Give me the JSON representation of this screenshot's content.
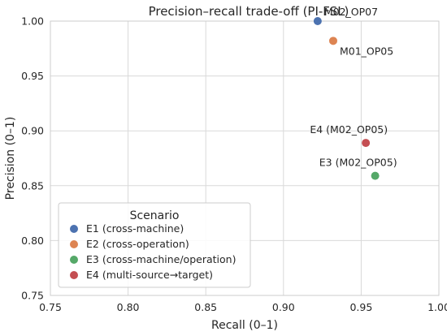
{
  "chart_data": {
    "type": "scatter",
    "title": "Precision–recall trade-off (PI-FSL)",
    "xlabel": "Recall (0–1)",
    "ylabel": "Precision (0–1)",
    "xlim": [
      0.75,
      1.0
    ],
    "ylim": [
      0.75,
      1.0
    ],
    "xticks": [
      "0.75",
      "0.80",
      "0.85",
      "0.90",
      "0.95",
      "1.00"
    ],
    "yticks": [
      "0.75",
      "0.80",
      "0.85",
      "0.90",
      "0.95",
      "1.00"
    ],
    "grid": true,
    "legend": {
      "title": "Scenario",
      "placement": "lower-left"
    },
    "series": [
      {
        "name": "E1 (cross-machine)",
        "color": "#4c72b0",
        "points": [
          {
            "x": 0.922,
            "y": 1.0,
            "label": "M02_OP07"
          }
        ]
      },
      {
        "name": "E2 (cross-operation)",
        "color": "#dd8452",
        "points": [
          {
            "x": 0.932,
            "y": 0.982,
            "label": "M01_OP05"
          }
        ]
      },
      {
        "name": "E3 (cross-machine/operation)",
        "color": "#55a868",
        "points": [
          {
            "x": 0.959,
            "y": 0.859,
            "label": "E3 (M02_OP05)"
          }
        ]
      },
      {
        "name": "E4 (multi-source→target)",
        "color": "#c44e52",
        "points": [
          {
            "x": 0.953,
            "y": 0.889,
            "label": "E4 (M02_OP05)"
          }
        ]
      }
    ]
  }
}
